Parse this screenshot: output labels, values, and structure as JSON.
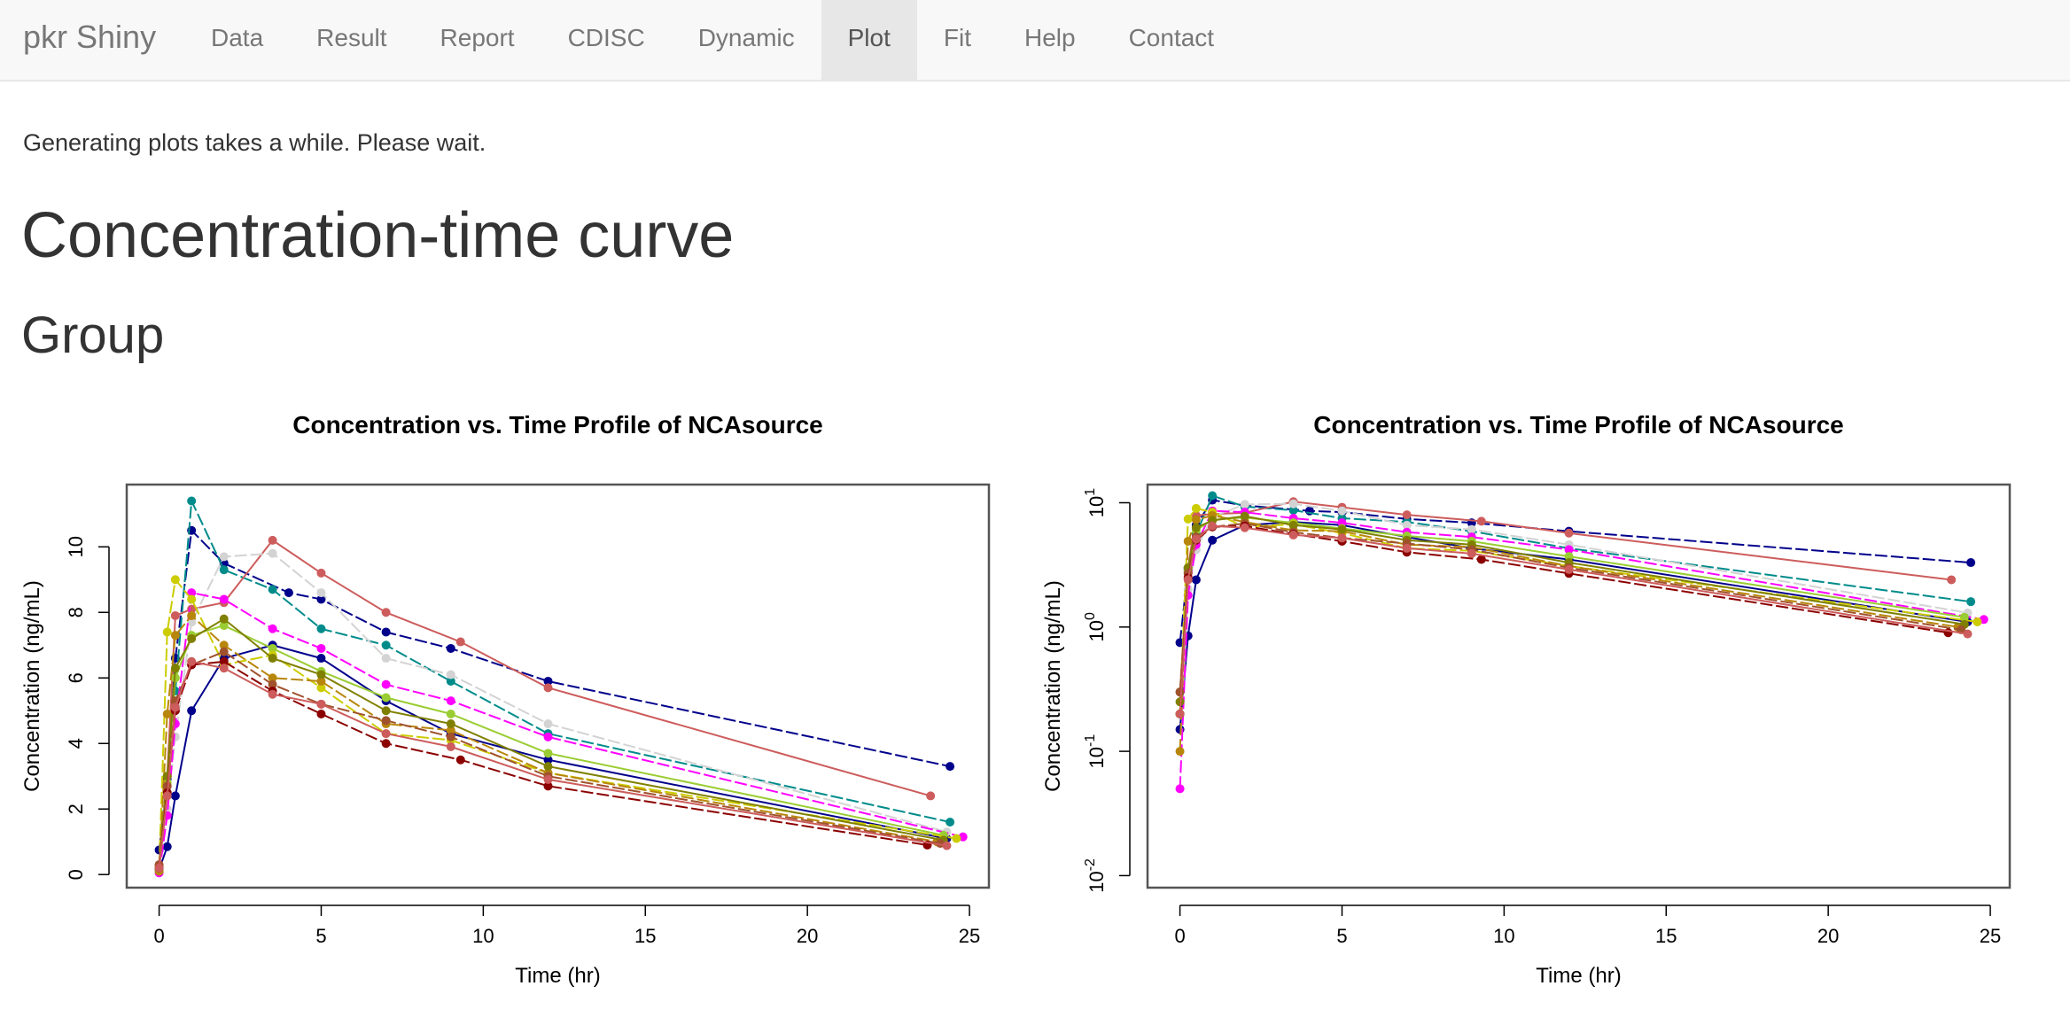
{
  "navbar": {
    "brand": "pkr Shiny",
    "tabs": [
      {
        "label": "Data",
        "active": false
      },
      {
        "label": "Result",
        "active": false
      },
      {
        "label": "Report",
        "active": false
      },
      {
        "label": "CDISC",
        "active": false
      },
      {
        "label": "Dynamic",
        "active": false
      },
      {
        "label": "Plot",
        "active": true
      },
      {
        "label": "Fit",
        "active": false
      },
      {
        "label": "Help",
        "active": false
      },
      {
        "label": "Contact",
        "active": false
      }
    ]
  },
  "main": {
    "notice": "Generating plots takes a while. Please wait.",
    "title": "Concentration-time curve",
    "subtitle": "Group"
  },
  "chart_data": [
    {
      "type": "line",
      "title": "Concentration vs. Time Profile of NCAsource",
      "xlabel": "Time (hr)",
      "ylabel": "Concentration (ng/mL)",
      "xlim": [
        -1,
        25.6
      ],
      "ylim": [
        -0.4,
        11.9
      ],
      "xticks": [
        "0",
        "5",
        "10",
        "15",
        "20",
        "25"
      ],
      "yticks": [
        "0",
        "2",
        "4",
        "6",
        "8",
        "10"
      ],
      "yscale": "linear",
      "grid": false,
      "legend": "none"
    },
    {
      "type": "line",
      "title": "Concentration vs. Time Profile of NCAsource",
      "xlabel": "Time (hr)",
      "ylabel": "Concentration (ng/mL)",
      "xlim": [
        -1,
        25.6
      ],
      "ylim": [
        0.008,
        14
      ],
      "xticks": [
        "0",
        "5",
        "10",
        "15",
        "20",
        "25"
      ],
      "yticks": [
        "10",
        "10",
        "10",
        "10"
      ],
      "ytick_exponents": [
        "-2",
        "-1",
        "0",
        "1"
      ],
      "yscale": "log",
      "grid": false,
      "legend": "none"
    }
  ],
  "series": [
    {
      "color": "#00008b",
      "x": [
        0,
        0.25,
        0.5,
        1,
        2,
        3.5,
        5,
        7,
        9,
        12,
        24.3
      ],
      "y": [
        0.15,
        0.85,
        2.4,
        5.0,
        6.6,
        7.0,
        6.6,
        5.3,
        4.3,
        3.5,
        1.1
      ]
    },
    {
      "color": "#00008b",
      "x": [
        0,
        0.25,
        0.5,
        1,
        2,
        4,
        5,
        7,
        9,
        12,
        24.4
      ],
      "y": [
        0.75,
        2.9,
        6.6,
        10.5,
        9.5,
        8.6,
        8.4,
        7.4,
        6.9,
        5.9,
        3.3
      ]
    },
    {
      "color": "#008b8b",
      "x": [
        0,
        0.25,
        0.5,
        1,
        2,
        3.5,
        5,
        7,
        9,
        12,
        24.4
      ],
      "y": [
        0.2,
        3.0,
        5.6,
        11.4,
        9.3,
        8.7,
        7.5,
        7.0,
        5.9,
        4.3,
        1.6
      ]
    },
    {
      "color": "#cd5c5c",
      "x": [
        0,
        0.25,
        0.5,
        1,
        2,
        3.5,
        5,
        7,
        9.3,
        12,
        23.8
      ],
      "y": [
        0.3,
        3.0,
        7.9,
        8.1,
        8.3,
        10.2,
        9.2,
        8.0,
        7.1,
        5.7,
        2.4
      ]
    },
    {
      "color": "#d3d3d3",
      "x": [
        0,
        0.25,
        0.5,
        1,
        2,
        3.5,
        5,
        7,
        9,
        12,
        24.3
      ],
      "y": [
        0.1,
        2.0,
        4.2,
        7.7,
        9.7,
        9.8,
        8.6,
        6.6,
        6.1,
        4.6,
        1.3
      ]
    },
    {
      "color": "#ff00ff",
      "x": [
        0,
        0.25,
        0.5,
        1,
        2,
        3.5,
        5,
        7,
        9,
        12,
        24.8
      ],
      "y": [
        0.05,
        1.8,
        4.6,
        8.6,
        8.4,
        7.5,
        6.9,
        5.8,
        5.3,
        4.2,
        1.15
      ]
    },
    {
      "color": "#9acd32",
      "x": [
        0,
        0.25,
        0.5,
        1,
        2,
        3.5,
        5,
        7,
        9,
        12,
        24.2
      ],
      "y": [
        0.2,
        2.8,
        6.0,
        7.3,
        7.6,
        6.9,
        6.2,
        5.4,
        4.9,
        3.7,
        1.2
      ]
    },
    {
      "color": "#cccc00",
      "x": [
        0,
        0.25,
        0.5,
        1,
        2,
        3.5,
        5,
        7,
        9,
        12,
        24.6
      ],
      "y": [
        0.2,
        7.4,
        9.0,
        8.4,
        6.4,
        6.7,
        5.7,
        4.3,
        4.1,
        3.1,
        1.1
      ]
    },
    {
      "color": "#b8860b",
      "x": [
        0,
        0.25,
        0.5,
        1,
        2,
        3.5,
        5,
        7,
        9,
        12,
        24.0
      ],
      "y": [
        0.1,
        4.9,
        7.3,
        7.9,
        7.0,
        6.0,
        5.9,
        4.6,
        4.4,
        3.1,
        1.0
      ]
    },
    {
      "color": "#808000",
      "x": [
        0,
        0.25,
        0.5,
        1,
        2,
        3.5,
        5,
        7,
        9,
        12,
        24.2
      ],
      "y": [
        0.25,
        3.0,
        6.3,
        7.2,
        7.8,
        6.6,
        6.1,
        5.0,
        4.6,
        3.3,
        1.05
      ]
    },
    {
      "color": "#a0522d",
      "x": [
        0,
        0.25,
        0.5,
        1,
        2,
        3.5,
        5,
        7,
        9,
        12,
        24.1
      ],
      "y": [
        0.3,
        2.7,
        5.3,
        6.4,
        6.8,
        5.8,
        5.2,
        4.7,
        4.2,
        3.0,
        0.95
      ]
    },
    {
      "color": "#8b0000",
      "x": [
        0,
        0.25,
        0.5,
        1,
        2,
        3.5,
        5,
        7,
        9.3,
        12,
        23.7
      ],
      "y": [
        0.2,
        2.5,
        5.0,
        6.4,
        6.5,
        5.6,
        4.9,
        4.0,
        3.5,
        2.7,
        0.9
      ]
    },
    {
      "color": "#cd5c5c",
      "x": [
        0,
        0.25,
        0.5,
        1,
        2,
        3.5,
        5,
        7,
        9,
        12,
        24.3
      ],
      "y": [
        0.2,
        2.4,
        5.1,
        6.5,
        6.3,
        5.5,
        5.2,
        4.3,
        3.9,
        2.9,
        0.88
      ]
    }
  ]
}
